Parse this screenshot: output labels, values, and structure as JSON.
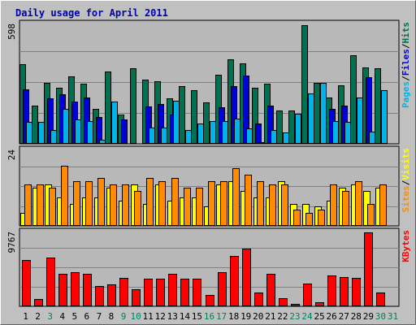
{
  "chart_data": {
    "type": "bar",
    "title": "Daily usage for April 2011",
    "categories": [
      "1",
      "2",
      "3",
      "4",
      "5",
      "6",
      "7",
      "8",
      "9",
      "10",
      "11",
      "12",
      "13",
      "14",
      "15",
      "16",
      "17",
      "18",
      "19",
      "20",
      "21",
      "22",
      "23",
      "24",
      "25",
      "26",
      "27",
      "28",
      "29",
      "30",
      "31"
    ],
    "weekend_days": [
      "3",
      "9",
      "10",
      "16",
      "17",
      "23",
      "24",
      "30",
      "31"
    ],
    "colors": {
      "background": "#c0c0c0",
      "plot_background": "#b8b8b8",
      "title": "#0000aa",
      "weekday_label": "#000000",
      "weekend_label": "#008060",
      "pages": "#00b4e8",
      "files": "#0000dd",
      "hits": "#007050",
      "sites": "#ff8c00",
      "visits": "#ffff00",
      "kbytes": "#ff0000"
    },
    "panels": [
      {
        "name": "top",
        "y_max_label": "598",
        "ylim": [
          0,
          598
        ],
        "legend_labels": [
          "Pages",
          "/",
          "Files",
          "/",
          "Hits"
        ],
        "series": [
          {
            "name": "Hits",
            "color_key": "hits",
            "values": [
              395,
              190,
              305,
              280,
              335,
              300,
              175,
              360,
              145,
              375,
              320,
              310,
              225,
              285,
              265,
              205,
              345,
              420,
              400,
              280,
              300,
              165,
              165,
              590,
              305,
              230,
              290,
              440,
              380,
              375,
              0
            ]
          },
          {
            "name": "Files",
            "color_key": "files",
            "values": [
              270,
              0,
              225,
              245,
              210,
              230,
              135,
              0,
              120,
              0,
              185,
              200,
              145,
              0,
              0,
              0,
              180,
              285,
              340,
              100,
              190,
              0,
              0,
              0,
              0,
              175,
              190,
              0,
              330,
              0,
              0
            ]
          },
          {
            "name": "Pages",
            "color_key": "pages",
            "values": [
              110,
              110,
              70,
              175,
              120,
              115,
              20,
              210,
              0,
              0,
              80,
              80,
              215,
              70,
              100,
              115,
              115,
              125,
              75,
              10,
              70,
              55,
              150,
              250,
              305,
              115,
              110,
              230,
              60,
              265,
              0
            ]
          }
        ]
      },
      {
        "name": "middle",
        "y_max_label": "24",
        "ylim": [
          0,
          24
        ],
        "legend_labels": [
          "Sites",
          "/",
          "Visits"
        ],
        "series": [
          {
            "name": "Visits",
            "color_key": "visits",
            "values": [
              4,
              12,
              13,
              9,
              7,
              9,
              9,
              12,
              8,
              13,
              7,
              13,
              8,
              9,
              9,
              6,
              13,
              14,
              11,
              9,
              9,
              14,
              7,
              7,
              6,
              8,
              12,
              13,
              11,
              12,
              0
            ]
          },
          {
            "name": "Sites",
            "color_key": "sites",
            "values": [
              13,
              13,
              12,
              19,
              14,
              14,
              15,
              13,
              13,
              11,
              15,
              14,
              15,
              12,
              12,
              14,
              14,
              18,
              16,
              14,
              13,
              13,
              5,
              4,
              5,
              13,
              11,
              14,
              7,
              13,
              0
            ]
          }
        ]
      },
      {
        "name": "bottom",
        "y_max_label": "9767",
        "ylim": [
          0,
          9767
        ],
        "legend_labels": [
          "KBytes"
        ],
        "series": [
          {
            "name": "KBytes",
            "color_key": "kbytes",
            "values": [
              6025,
              930,
              6415,
              4245,
              4500,
              4230,
              2610,
              2880,
              3670,
              2230,
              3600,
              3630,
              4205,
              3560,
              3560,
              1440,
              4480,
              6590,
              7550,
              1845,
              4220,
              1070,
              370,
              2990,
              550,
              4050,
              3780,
              3730,
              9610,
              1785,
              0
            ]
          }
        ]
      }
    ]
  }
}
